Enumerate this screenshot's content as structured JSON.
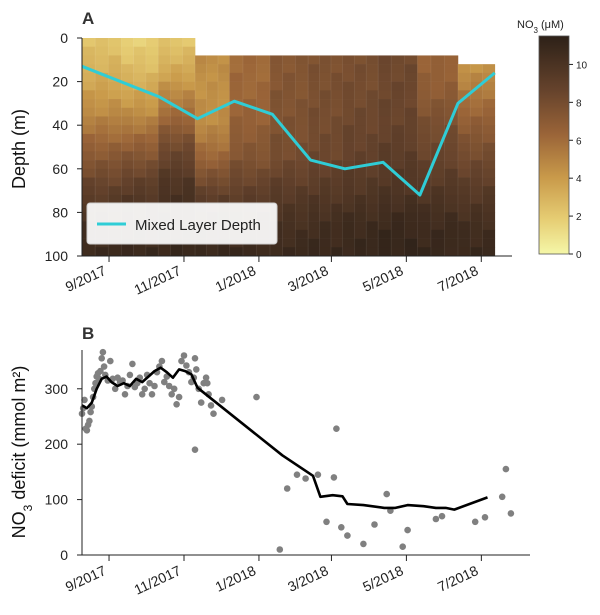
{
  "chart_data": [
    {
      "type": "heatmap",
      "panel_label": "A",
      "ylabel": "Depth (m)",
      "ylim": [
        100,
        0
      ],
      "yticks": [
        "0",
        "20",
        "40",
        "60",
        "80",
        "100"
      ],
      "xlim": [
        "2017-08-10",
        "2018-07-26"
      ],
      "xticks": [
        {
          "date": "2017-09-01",
          "label": "9/2017"
        },
        {
          "date": "2017-11-01",
          "label": "11/2017"
        },
        {
          "date": "2018-01-01",
          "label": "1/2018"
        },
        {
          "date": "2018-03-01",
          "label": "3/2018"
        },
        {
          "date": "2018-05-01",
          "label": "5/2018"
        },
        {
          "date": "2018-07-01",
          "label": "7/2018"
        }
      ],
      "colorbar": {
        "label_prefix": "NO",
        "label_sub": "3",
        "label_suffix": " (μM)",
        "min": 0,
        "max": 11.5,
        "ticks": [
          "0",
          "2",
          "4",
          "6",
          "8",
          "10"
        ]
      },
      "profiles": [
        {
          "start": "2017-08-10",
          "end": "2017-09-11",
          "top": 0,
          "bottom": 100,
          "values": [
            2.2,
            3.2,
            4.6,
            6.6,
            8.6,
            10.2,
            10.8
          ]
        },
        {
          "start": "2017-09-11",
          "end": "2017-10-11",
          "top": 0,
          "bottom": 100,
          "values": [
            1.6,
            2.8,
            4.4,
            6.8,
            9.0,
            10.4,
            10.9
          ]
        },
        {
          "start": "2017-10-11",
          "end": "2017-11-10",
          "top": 0,
          "bottom": 100,
          "values": [
            2.0,
            3.6,
            5.8,
            8.2,
            9.8,
            10.6,
            11.0
          ]
        },
        {
          "start": "2017-11-10",
          "end": "2017-12-08",
          "top": 8,
          "bottom": 100,
          "values": [
            4.6,
            4.4,
            4.6,
            6.2,
            8.6,
            10.4,
            11.0
          ]
        },
        {
          "start": "2017-12-08",
          "end": "2018-01-10",
          "top": 8,
          "bottom": 100,
          "values": [
            6.0,
            6.2,
            6.6,
            7.4,
            8.8,
            10.2,
            10.9
          ]
        },
        {
          "start": "2018-01-10",
          "end": "2018-02-10",
          "top": 8,
          "bottom": 100,
          "values": [
            7.2,
            7.4,
            7.6,
            8.0,
            9.2,
            10.2,
            10.8
          ]
        },
        {
          "start": "2018-02-10",
          "end": "2018-03-10",
          "top": 8,
          "bottom": 100,
          "values": [
            7.6,
            7.8,
            8.0,
            8.4,
            9.4,
            10.4,
            10.9
          ]
        },
        {
          "start": "2018-03-10",
          "end": "2018-04-08",
          "top": 8,
          "bottom": 100,
          "values": [
            7.8,
            8.0,
            8.4,
            8.8,
            9.6,
            10.6,
            11.0
          ]
        },
        {
          "start": "2018-04-08",
          "end": "2018-05-10",
          "top": 8,
          "bottom": 100,
          "values": [
            8.2,
            8.4,
            8.6,
            9.2,
            9.8,
            10.8,
            11.2
          ]
        },
        {
          "start": "2018-05-10",
          "end": "2018-06-12",
          "top": 8,
          "bottom": 100,
          "values": [
            6.4,
            6.8,
            7.8,
            8.6,
            9.6,
            10.6,
            11.0
          ]
        },
        {
          "start": "2018-06-12",
          "end": "2018-07-12",
          "top": 12,
          "bottom": 100,
          "values": [
            4.2,
            5.6,
            7.0,
            8.2,
            9.4,
            10.4,
            10.9
          ]
        }
      ],
      "series": [
        {
          "name": "Mixed Layer Depth",
          "color": "#2fcdd6",
          "x": [
            "2017-08-10",
            "2017-10-12",
            "2017-11-12",
            "2017-12-12",
            "2018-01-12",
            "2018-02-12",
            "2018-03-12",
            "2018-04-12",
            "2018-05-12",
            "2018-06-12",
            "2018-07-12"
          ],
          "y": [
            13,
            27,
            37,
            29,
            35,
            56,
            60,
            57,
            72,
            30,
            16
          ]
        }
      ],
      "legend": "bottom-left"
    },
    {
      "type": "scatter",
      "panel_label": "B",
      "ylabel_prefix": "NO",
      "ylabel_sub": "3",
      "ylabel_suffix": " deficit (mmol m²)",
      "ylim": [
        0,
        370
      ],
      "yticks": [
        "0",
        "100",
        "200",
        "300"
      ],
      "xlim": [
        "2017-08-10",
        "2018-07-26"
      ],
      "xticks": [
        {
          "date": "2017-09-01",
          "label": "9/2017"
        },
        {
          "date": "2017-11-01",
          "label": "11/2017"
        },
        {
          "date": "2018-01-01",
          "label": "1/2018"
        },
        {
          "date": "2018-03-01",
          "label": "3/2018"
        },
        {
          "date": "2018-05-01",
          "label": "5/2018"
        },
        {
          "date": "2018-07-01",
          "label": "7/2018"
        }
      ],
      "series": [
        {
          "name": "",
          "kind": "points",
          "color": "#808080",
          "x": [
            "2017-08-10",
            "2017-08-11",
            "2017-08-12",
            "2017-08-13",
            "2017-08-14",
            "2017-08-15",
            "2017-08-16",
            "2017-08-17",
            "2017-08-18",
            "2017-08-19",
            "2017-08-20",
            "2017-08-21",
            "2017-08-22",
            "2017-08-23",
            "2017-08-24",
            "2017-08-25",
            "2017-08-26",
            "2017-08-27",
            "2017-08-28",
            "2017-08-29",
            "2017-08-31",
            "2017-09-02",
            "2017-09-04",
            "2017-09-06",
            "2017-09-08",
            "2017-09-10",
            "2017-09-12",
            "2017-09-14",
            "2017-09-16",
            "2017-09-18",
            "2017-09-20",
            "2017-09-22",
            "2017-09-24",
            "2017-09-26",
            "2017-09-28",
            "2017-09-30",
            "2017-10-02",
            "2017-10-04",
            "2017-10-06",
            "2017-10-08",
            "2017-10-10",
            "2017-10-12",
            "2017-10-14",
            "2017-10-16",
            "2017-10-18",
            "2017-10-20",
            "2017-10-22",
            "2017-10-24",
            "2017-10-26",
            "2017-10-28",
            "2017-10-30",
            "2017-11-01",
            "2017-11-03",
            "2017-11-05",
            "2017-11-07",
            "2017-11-09",
            "2017-11-10",
            "2017-11-11",
            "2017-11-13",
            "2017-11-15",
            "2017-11-17",
            "2017-11-19",
            "2017-11-21",
            "2017-11-23",
            "2017-11-25",
            "2017-11-10",
            "2017-11-20",
            "2017-12-02",
            "2017-12-30",
            "2018-01-18",
            "2018-01-24",
            "2018-02-01",
            "2018-02-08",
            "2018-02-18",
            "2018-02-25",
            "2018-03-03",
            "2018-03-05",
            "2018-03-09",
            "2018-03-14",
            "2018-03-27",
            "2018-04-05",
            "2018-04-15",
            "2018-04-18",
            "2018-04-28",
            "2018-05-02",
            "2018-05-25",
            "2018-05-30",
            "2018-06-26",
            "2018-07-04",
            "2018-07-18",
            "2018-07-21",
            "2018-07-25"
          ],
          "y": [
            255,
            265,
            280,
            228,
            225,
            235,
            242,
            258,
            268,
            285,
            300,
            310,
            322,
            328,
            318,
            332,
            355,
            366,
            340,
            325,
            315,
            350,
            318,
            300,
            320,
            312,
            315,
            290,
            305,
            325,
            345,
            303,
            310,
            320,
            290,
            300,
            325,
            310,
            290,
            305,
            330,
            340,
            350,
            312,
            322,
            305,
            290,
            300,
            272,
            285,
            350,
            360,
            342,
            330,
            312,
            320,
            355,
            335,
            300,
            275,
            310,
            320,
            290,
            270,
            255,
            190,
            310,
            280,
            285,
            10,
            120,
            145,
            138,
            145,
            60,
            140,
            228,
            50,
            35,
            20,
            55,
            110,
            80,
            15,
            45,
            65,
            70,
            60,
            68,
            105,
            155,
            75
          ]
        },
        {
          "name": "",
          "kind": "line",
          "color": "#000000",
          "x": [
            "2017-08-10",
            "2017-08-14",
            "2017-08-18",
            "2017-08-22",
            "2017-08-26",
            "2017-08-30",
            "2017-09-03",
            "2017-09-08",
            "2017-09-13",
            "2017-09-18",
            "2017-09-23",
            "2017-09-28",
            "2017-10-03",
            "2017-10-08",
            "2017-10-13",
            "2017-10-18",
            "2017-10-23",
            "2017-10-28",
            "2017-11-02",
            "2017-11-07",
            "2017-11-12",
            "2018-01-20",
            "2018-02-14",
            "2018-02-20",
            "2018-03-02",
            "2018-03-10",
            "2018-03-14",
            "2018-03-27",
            "2018-04-13",
            "2018-04-22",
            "2018-05-02",
            "2018-05-15",
            "2018-05-25",
            "2018-06-02",
            "2018-06-09",
            "2018-07-06"
          ],
          "y": [
            270,
            265,
            275,
            300,
            318,
            322,
            312,
            305,
            310,
            305,
            318,
            312,
            322,
            332,
            338,
            330,
            320,
            335,
            332,
            326,
            302,
            180,
            143,
            105,
            108,
            106,
            92,
            90,
            85,
            85,
            90,
            88,
            85,
            85,
            82,
            104
          ]
        }
      ]
    }
  ],
  "legend_label": "Mixed Layer Depth"
}
